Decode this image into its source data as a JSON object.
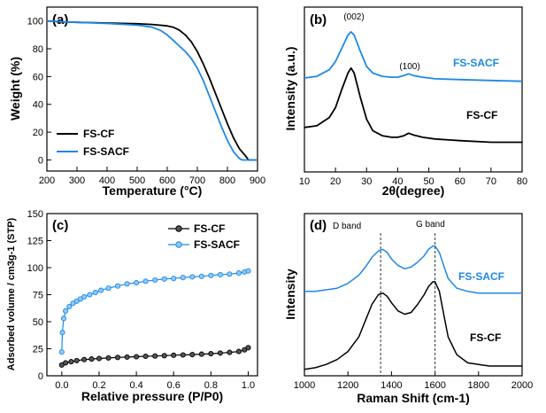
{
  "colors": {
    "black_series": "#000000",
    "blue_series": "#1e88e5"
  },
  "chart_data": [
    {
      "panel": "(a)",
      "type": "line",
      "xlabel": "Temperature (°C)",
      "ylabel": "Weight (%)",
      "xlim": [
        200,
        900
      ],
      "ylim": [
        -8,
        110
      ],
      "xticks": [
        200,
        300,
        400,
        500,
        600,
        700,
        800,
        900
      ],
      "yticks": [
        0,
        20,
        40,
        60,
        80,
        100
      ],
      "legend": "bottom-left",
      "series": [
        {
          "name": "FS-CF",
          "color": "#000000",
          "x": [
            200,
            250,
            300,
            400,
            500,
            550,
            600,
            620,
            640,
            660,
            680,
            700,
            720,
            740,
            760,
            780,
            800,
            820,
            840,
            860,
            870,
            880,
            900
          ],
          "y": [
            100,
            99.4,
            99,
            98.5,
            98,
            97.5,
            96.5,
            95.5,
            93.5,
            90,
            85,
            78,
            69,
            59,
            48,
            37,
            26,
            16,
            8,
            3,
            0,
            0,
            0
          ]
        },
        {
          "name": "FS-SACF",
          "color": "#1e88e5",
          "x": [
            200,
            250,
            300,
            400,
            500,
            550,
            580,
            600,
            620,
            640,
            660,
            680,
            700,
            720,
            740,
            760,
            780,
            800,
            820,
            840,
            850,
            900
          ],
          "y": [
            100,
            99.4,
            99,
            98.2,
            97,
            95.5,
            93,
            90,
            86,
            82,
            78,
            73,
            66,
            57,
            46,
            35,
            24,
            14,
            6,
            1,
            0,
            0
          ]
        }
      ]
    },
    {
      "panel": "(b)",
      "type": "line",
      "xlabel": "2θ(degree)",
      "ylabel": "Intensity (a.u.)",
      "xlim": [
        10,
        80
      ],
      "ylim": [
        0,
        1
      ],
      "xticks": [
        10,
        20,
        30,
        40,
        50,
        60,
        70,
        80
      ],
      "annotations": [
        "(002)",
        "(100)"
      ],
      "series_labels": [
        "FS-SACF",
        "FS-CF"
      ],
      "series": [
        {
          "name": "FS-SACF",
          "color": "#1e88e5",
          "x": [
            10,
            14,
            18,
            20,
            22,
            24,
            25,
            26,
            28,
            30,
            32,
            35,
            38,
            40,
            42,
            43.5,
            45,
            48,
            52,
            60,
            70,
            80
          ],
          "y": [
            0.57,
            0.58,
            0.62,
            0.67,
            0.75,
            0.83,
            0.85,
            0.83,
            0.73,
            0.64,
            0.6,
            0.58,
            0.575,
            0.575,
            0.585,
            0.595,
            0.585,
            0.575,
            0.565,
            0.56,
            0.555,
            0.55
          ]
        },
        {
          "name": "FS-CF",
          "color": "#000000",
          "x": [
            10,
            14,
            18,
            20,
            22,
            24,
            25,
            26,
            28,
            30,
            32,
            35,
            38,
            40,
            42,
            43.5,
            45,
            48,
            52,
            60,
            70,
            80
          ],
          "y": [
            0.27,
            0.28,
            0.33,
            0.39,
            0.5,
            0.6,
            0.63,
            0.6,
            0.45,
            0.32,
            0.25,
            0.22,
            0.21,
            0.21,
            0.22,
            0.235,
            0.225,
            0.21,
            0.2,
            0.19,
            0.18,
            0.18
          ]
        }
      ]
    },
    {
      "panel": "(c)",
      "type": "scatter",
      "xlabel": "Relative pressure (P/P0)",
      "ylabel": "Adsorbed volume / cm3g-1 (STP)",
      "xlim": [
        -0.08,
        1.05
      ],
      "ylim": [
        0,
        150
      ],
      "xticks": [
        0.0,
        0.2,
        0.4,
        0.6,
        0.8,
        1.0
      ],
      "yticks": [
        0,
        25,
        50,
        75,
        100,
        125,
        150
      ],
      "legend": "top-right",
      "series": [
        {
          "name": "FS-CF",
          "color": "#000000",
          "x": [
            0.0,
            0.02,
            0.05,
            0.08,
            0.12,
            0.16,
            0.2,
            0.25,
            0.3,
            0.35,
            0.4,
            0.45,
            0.5,
            0.55,
            0.6,
            0.65,
            0.7,
            0.75,
            0.8,
            0.85,
            0.9,
            0.95,
            0.98,
            1.0
          ],
          "y": [
            10,
            12,
            13,
            14,
            15,
            15.5,
            16,
            16.5,
            17,
            17.3,
            17.6,
            18,
            18.3,
            18.6,
            19,
            19.3,
            19.6,
            20,
            20.4,
            21,
            21.6,
            22.5,
            24,
            26
          ]
        },
        {
          "name": "FS-SACF",
          "color": "#1e88e5",
          "x": [
            0.0,
            0.003,
            0.01,
            0.02,
            0.04,
            0.06,
            0.08,
            0.1,
            0.12,
            0.15,
            0.18,
            0.21,
            0.25,
            0.3,
            0.35,
            0.4,
            0.45,
            0.5,
            0.55,
            0.6,
            0.65,
            0.7,
            0.75,
            0.8,
            0.85,
            0.9,
            0.95,
            0.98,
            1.0
          ],
          "y": [
            22,
            40,
            53,
            60,
            64,
            67,
            69,
            71,
            73,
            75,
            77,
            79,
            81,
            83,
            85,
            86,
            87.5,
            88.5,
            89.5,
            90,
            90.8,
            91.5,
            92,
            92.8,
            93.5,
            94,
            95,
            96,
            97
          ]
        }
      ]
    },
    {
      "panel": "(d)",
      "type": "line",
      "xlabel": "Raman Shift (cm-1)",
      "ylabel": "Intensity",
      "xlim": [
        1000,
        2000
      ],
      "ylim": [
        0,
        1
      ],
      "xticks": [
        1000,
        1200,
        1400,
        1600,
        1800,
        2000
      ],
      "annotations": [
        "D band",
        "G band"
      ],
      "reference_lines": [
        1350,
        1600
      ],
      "series_labels": [
        "FS-SACF",
        "FS-CF"
      ],
      "series": [
        {
          "name": "FS-SACF",
          "color": "#1e88e5",
          "x": [
            1000,
            1050,
            1100,
            1150,
            1200,
            1250,
            1280,
            1310,
            1340,
            1360,
            1380,
            1400,
            1430,
            1460,
            1490,
            1520,
            1550,
            1570,
            1590,
            1600,
            1620,
            1640,
            1660,
            1700,
            1750,
            1800,
            1850,
            1900,
            1950,
            2000
          ],
          "y": [
            0.52,
            0.52,
            0.53,
            0.54,
            0.57,
            0.62,
            0.67,
            0.73,
            0.77,
            0.78,
            0.76,
            0.72,
            0.68,
            0.66,
            0.67,
            0.7,
            0.74,
            0.78,
            0.8,
            0.8,
            0.76,
            0.68,
            0.6,
            0.54,
            0.52,
            0.51,
            0.51,
            0.51,
            0.51,
            0.51
          ]
        },
        {
          "name": "FS-CF",
          "color": "#000000",
          "x": [
            1000,
            1050,
            1100,
            1150,
            1200,
            1250,
            1280,
            1310,
            1340,
            1360,
            1380,
            1400,
            1430,
            1460,
            1490,
            1520,
            1550,
            1570,
            1590,
            1600,
            1620,
            1640,
            1660,
            1700,
            1750,
            1800,
            1850,
            1900,
            1950,
            2000
          ],
          "y": [
            0.04,
            0.05,
            0.07,
            0.1,
            0.15,
            0.24,
            0.34,
            0.44,
            0.5,
            0.51,
            0.49,
            0.45,
            0.4,
            0.38,
            0.39,
            0.44,
            0.5,
            0.55,
            0.58,
            0.58,
            0.52,
            0.38,
            0.24,
            0.13,
            0.08,
            0.07,
            0.06,
            0.06,
            0.06,
            0.06
          ]
        }
      ]
    }
  ]
}
